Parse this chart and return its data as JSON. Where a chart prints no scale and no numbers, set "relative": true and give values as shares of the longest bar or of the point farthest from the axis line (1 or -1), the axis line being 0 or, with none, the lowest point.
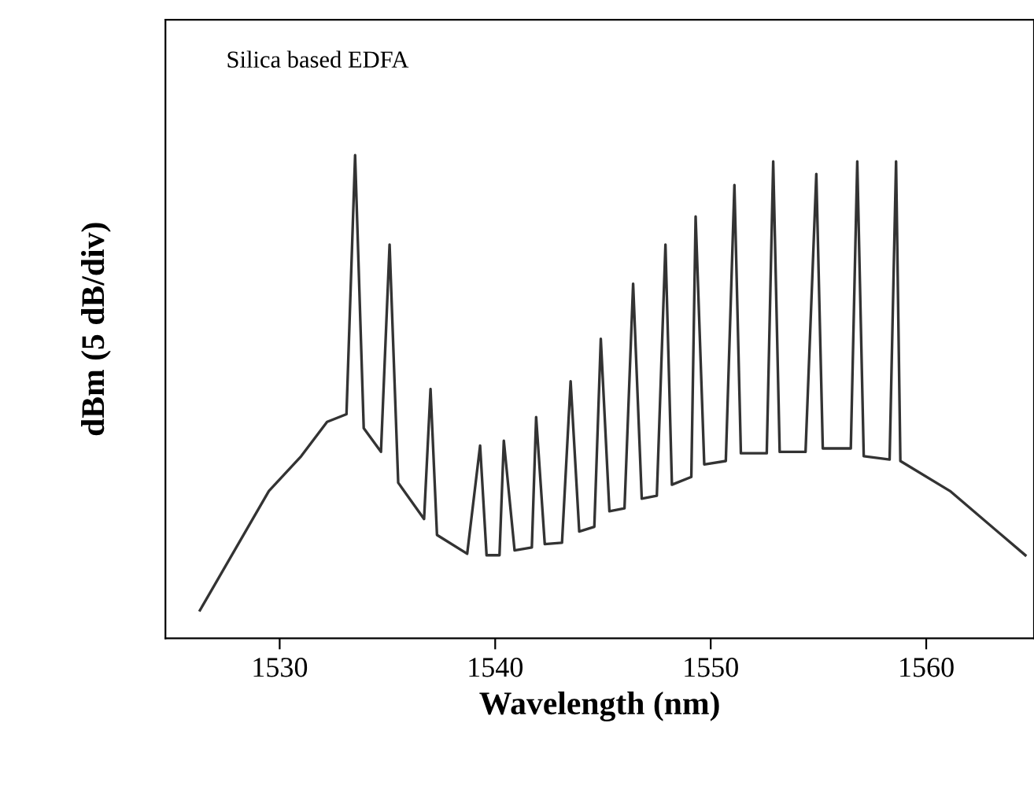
{
  "chart_data": {
    "type": "line",
    "relative": true,
    "xlabel": "Wavelength (nm)",
    "ylabel": "dBm (5 dB/div)",
    "annotations": [
      "Silica based EDFA"
    ],
    "xlim": [
      1524.7,
      1565
    ],
    "xticks": [
      1530,
      1540,
      1550,
      1560
    ],
    "grid": false,
    "legend": false,
    "marker": "none",
    "line_style": "solid",
    "series": [
      {
        "color": "#333333",
        "x": [
          1526.3,
          1529.5,
          1531.0,
          1532.2,
          1533.1,
          1533.5,
          1533.9,
          1534.7,
          1535.1,
          1535.5,
          1536.7,
          1537.0,
          1537.3,
          1538.7,
          1539.3,
          1539.6,
          1540.2,
          1540.4,
          1540.9,
          1541.7,
          1541.9,
          1542.3,
          1543.1,
          1543.5,
          1543.9,
          1544.6,
          1544.9,
          1545.3,
          1546.0,
          1546.4,
          1546.8,
          1547.5,
          1547.9,
          1548.2,
          1549.1,
          1549.3,
          1549.7,
          1550.7,
          1551.1,
          1551.4,
          1552.6,
          1552.9,
          1553.2,
          1554.4,
          1554.9,
          1555.2,
          1556.5,
          1556.8,
          1557.1,
          1558.3,
          1558.6,
          1558.8,
          1561.1,
          1564.6
        ],
        "values": [
          0.058,
          0.305,
          0.377,
          0.448,
          0.464,
          1.0,
          0.435,
          0.386,
          0.815,
          0.322,
          0.247,
          0.516,
          0.214,
          0.175,
          0.399,
          0.172,
          0.172,
          0.409,
          0.182,
          0.188,
          0.458,
          0.195,
          0.198,
          0.532,
          0.221,
          0.231,
          0.62,
          0.263,
          0.269,
          0.734,
          0.289,
          0.295,
          0.815,
          0.318,
          0.334,
          0.873,
          0.36,
          0.367,
          0.938,
          0.383,
          0.383,
          0.987,
          0.386,
          0.386,
          0.961,
          0.393,
          0.393,
          0.987,
          0.377,
          0.37,
          0.987,
          0.367,
          0.305,
          0.172
        ]
      }
    ]
  }
}
